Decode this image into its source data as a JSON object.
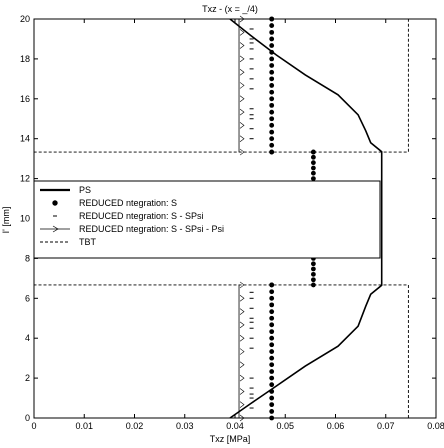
{
  "chart_data": {
    "type": "line",
    "title": "Txz - (x = _/4)",
    "xlabel": "Txz [MPa]",
    "ylabel": "I' [mm]",
    "xlim": [
      0,
      0.08
    ],
    "ylim": [
      0,
      20
    ],
    "xticks": [
      {
        "v": 0,
        "label": "0"
      },
      {
        "v": 0.01,
        "label": "0.01"
      },
      {
        "v": 0.02,
        "label": "0.02"
      },
      {
        "v": 0.03,
        "label": "0.03"
      },
      {
        "v": 0.04,
        "label": "0.04"
      },
      {
        "v": 0.05,
        "label": "0.05"
      },
      {
        "v": 0.06,
        "label": "0.06"
      },
      {
        "v": 0.07,
        "label": "0.07"
      },
      {
        "v": 0.08,
        "label": "0.08"
      }
    ],
    "yticks": [
      {
        "v": 0,
        "label": "0"
      },
      {
        "v": 2,
        "label": "2"
      },
      {
        "v": 4,
        "label": "4"
      },
      {
        "v": 6,
        "label": "6"
      },
      {
        "v": 8,
        "label": "8"
      },
      {
        "v": 10,
        "label": "10"
      },
      {
        "v": 12,
        "label": "12"
      },
      {
        "v": 14,
        "label": "14"
      },
      {
        "v": 16,
        "label": "16"
      },
      {
        "v": 18,
        "label": "18"
      },
      {
        "v": 20,
        "label": "20"
      }
    ],
    "grid": false,
    "legend_position": "center-left",
    "series": [
      {
        "name": "PS",
        "style": "solid-thick",
        "x": [
          0.039,
          0.043,
          0.0482,
          0.054,
          0.0605,
          0.0645,
          0.066,
          0.067,
          0.0692,
          0.0692,
          0.0692,
          0.067,
          0.066,
          0.0645,
          0.0605,
          0.054,
          0.0482,
          0.043,
          0.039
        ],
        "y": [
          0,
          0.7,
          1.6,
          2.6,
          3.6,
          4.6,
          5.6,
          6.2,
          6.65,
          10,
          13.35,
          13.8,
          14.4,
          15.2,
          16.2,
          17.2,
          18.2,
          19.2,
          20
        ]
      },
      {
        "name": "REDUCED ntegration: S",
        "style": "dots",
        "x": [
          0.0473,
          0.0473,
          0.0473,
          0.0473,
          0.0473,
          0.0473,
          0.0473,
          0.0473,
          0.0473,
          0.0473,
          0.0473,
          0.0473,
          0.0473,
          0.0473,
          0.0473,
          0.0473,
          0.0473,
          0.0473,
          0.0473,
          0.0473,
          0.0473,
          0.0473,
          0.0473,
          0.0473,
          0.0473,
          0.0473,
          0.0473,
          0.0473,
          0.0473,
          0.0473,
          0.0473,
          0.0473,
          0.0473,
          0.0473,
          0.0473,
          0.0473,
          0.0473,
          0.0473,
          0.0473,
          0.0473,
          0.0473,
          0.0473,
          0.0473,
          0.0473,
          0.0473,
          0.0556,
          0.0556,
          0.0556,
          0.0556,
          0.0556,
          0.0556,
          0.0556,
          0.0556,
          0.0556,
          0.0556,
          0.0556,
          0.0556,
          0.0556,
          0.0556,
          0.0556,
          0.0556,
          0.0556,
          0.0556,
          0.0556,
          0.0556,
          0.0556,
          0.0556,
          0.0556,
          0.0556,
          0.0556,
          0.0556,
          0.0556
        ],
        "y": [
          0,
          0.33,
          0.67,
          1,
          1.33,
          1.67,
          2,
          2.33,
          2.67,
          3,
          3.33,
          3.67,
          4,
          4.33,
          4.67,
          5,
          5.33,
          5.67,
          6,
          6.33,
          6.67,
          13.33,
          13.67,
          14,
          14.33,
          14.67,
          15,
          15.33,
          15.67,
          16,
          16.33,
          16.67,
          17,
          17.33,
          17.67,
          18,
          18.33,
          18.67,
          19,
          19.33,
          19.67,
          20,
          6.67,
          13.33,
          20,
          6.67,
          6.93,
          7.2,
          7.47,
          7.73,
          8,
          8.27,
          8.53,
          8.8,
          9.07,
          9.33,
          9.6,
          9.87,
          10.13,
          10.4,
          10.67,
          10.93,
          11.2,
          11.47,
          11.73,
          12,
          12.27,
          12.53,
          12.8,
          13.07,
          13.33,
          13.33
        ]
      },
      {
        "name": "REDUCED ntegration: S - SPsi",
        "style": "dashes",
        "x": [
          0.0433,
          0.0433,
          0.0433,
          0.0433,
          0.0433,
          0.0433,
          0.0433,
          0.0433,
          0.0433,
          0.0433,
          0.0433,
          0.0433,
          0.0433,
          0.0433,
          0.0433,
          0.0433,
          0.0433,
          0.0433,
          0.0433,
          0.0433,
          0.0433,
          0.0433,
          0.0433,
          0.0433,
          0.0433,
          0.0433
        ],
        "y": [
          0.5,
          1.0,
          1.5,
          2.0,
          3.5,
          4.0,
          4.5,
          5.0,
          5.5,
          6.0,
          14.0,
          14.5,
          15.0,
          15.5,
          16.5,
          17.0,
          17.5,
          18.0,
          18.5,
          19.0,
          19.5,
          1.2,
          4.8,
          15.2,
          18.8,
          6.3
        ]
      },
      {
        "name": "REDUCED ntegration: S - SPsi - Psi",
        "style": "thin-triangles",
        "x": [
          0.0408,
          0.0408,
          0.0408,
          0.0408,
          0.0408,
          0.0408,
          0.0408,
          0.0408,
          0.0408,
          0.0408,
          0.0408,
          0.0408,
          0.0408,
          0.0408,
          0.0408,
          0.0408,
          0.0408,
          0.0408,
          0.0408,
          0.0408,
          0.0408,
          0.0408
        ],
        "y": [
          0,
          0.67,
          1.33,
          2,
          2.67,
          3.33,
          4,
          4.67,
          5.33,
          6,
          6.67,
          13.33,
          14,
          14.67,
          15.33,
          16,
          16.67,
          17.33,
          18,
          18.67,
          19.33,
          20
        ]
      },
      {
        "name": "TBT",
        "style": "dashed",
        "x": [
          0.0745,
          0.0745,
          0.0,
          0.0,
          0.0745,
          0.0745
        ],
        "y": [
          0,
          6.67,
          6.67,
          13.33,
          13.33,
          20
        ]
      }
    ]
  }
}
